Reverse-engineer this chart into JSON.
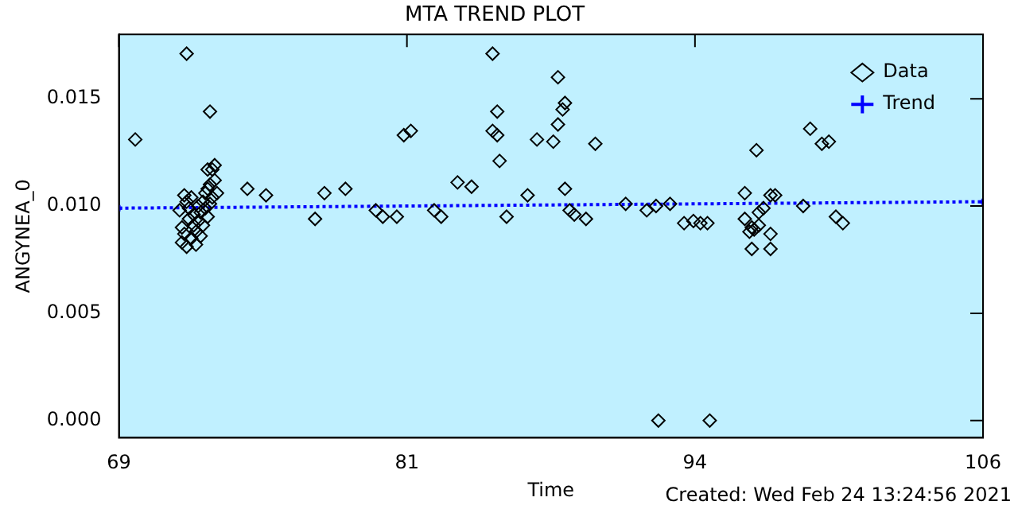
{
  "chart_data": {
    "type": "scatter",
    "title": "MTA TREND PLOT",
    "xlabel": "Time",
    "ylabel": "ANGYNEA_0",
    "annotations": [
      "Created: Wed Feb 24 13:24:56 2021"
    ],
    "xlim": [
      69,
      106
    ],
    "xticks": [
      69,
      {
        "value": 81.333,
        "label": "81"
      },
      {
        "value": 93.667,
        "label": "94"
      },
      106
    ],
    "ylim": [
      -0.0008,
      0.018
    ],
    "yticks": [
      {
        "value": 0,
        "label": "0.000"
      },
      {
        "value": 0.005,
        "label": "0.005"
      },
      {
        "value": 0.01,
        "label": "0.010"
      },
      {
        "value": 0.015,
        "label": "0.015"
      }
    ],
    "grid": false,
    "legend": "top right",
    "series": [
      {
        "name": "Data",
        "marker": "diamond",
        "color": "#000000",
        "x": [
          69.7,
          71.9,
          72.9,
          71.6,
          71.7,
          71.7,
          71.8,
          71.8,
          71.9,
          71.9,
          72.0,
          72.0,
          72.1,
          72.1,
          72.2,
          72.2,
          72.3,
          72.3,
          72.4,
          72.4,
          72.5,
          72.5,
          72.6,
          72.6,
          72.7,
          72.7,
          72.8,
          72.8,
          72.9,
          72.9,
          73.0,
          73.0,
          73.1,
          73.1,
          72.8,
          73.2,
          74.5,
          75.3,
          77.4,
          77.8,
          78.7,
          80.0,
          80.3,
          80.9,
          81.2,
          81.5,
          82.5,
          82.8,
          83.5,
          84.1,
          85.0,
          85.2,
          85.0,
          85.2,
          85.3,
          85.6,
          86.5,
          86.9,
          87.6,
          87.8,
          88.0,
          87.8,
          88.1,
          88.1,
          88.3,
          88.5,
          89.0,
          89.4,
          90.7,
          91.6,
          92.0,
          92.6,
          93.2,
          93.6,
          93.9,
          92.1,
          94.3,
          94.2,
          95.8,
          96.3,
          95.8,
          96.1,
          96.2,
          96.4,
          96.0,
          96.1,
          96.9,
          96.9,
          96.9,
          97.1,
          96.6,
          96.4,
          98.3,
          98.6,
          99.1,
          99.4,
          99.7,
          100.0
        ],
        "values": [
          0.0131,
          0.0171,
          0.0144,
          0.0098,
          0.009,
          0.0083,
          0.0105,
          0.0087,
          0.0102,
          0.0081,
          0.0094,
          0.0099,
          0.0085,
          0.0104,
          0.0091,
          0.0096,
          0.0088,
          0.0082,
          0.01,
          0.0093,
          0.0097,
          0.0086,
          0.0102,
          0.0091,
          0.0099,
          0.0106,
          0.0095,
          0.0108,
          0.011,
          0.0101,
          0.0117,
          0.0104,
          0.0119,
          0.0112,
          0.0117,
          0.0106,
          0.0108,
          0.0105,
          0.0094,
          0.0106,
          0.0108,
          0.0098,
          0.0095,
          0.0095,
          0.0133,
          0.0135,
          0.0098,
          0.0095,
          0.0111,
          0.0109,
          0.0171,
          0.0144,
          0.0135,
          0.0133,
          0.0121,
          0.0095,
          0.0105,
          0.0131,
          0.013,
          0.0138,
          0.0145,
          0.016,
          0.0148,
          0.0108,
          0.0098,
          0.0096,
          0.0094,
          0.0129,
          0.0101,
          0.0098,
          0.01,
          0.0101,
          0.0092,
          0.0093,
          0.0092,
          0.0,
          0.0,
          0.0092,
          0.0106,
          0.0126,
          0.0094,
          0.009,
          0.0089,
          0.0091,
          0.0088,
          0.008,
          0.008,
          0.0087,
          0.0105,
          0.0105,
          0.0099,
          0.0097,
          0.01,
          0.0136,
          0.0129,
          0.013,
          0.0095,
          0.0092
        ]
      },
      {
        "name": "Trend",
        "type": "line",
        "marker": "cross",
        "line_style": "dotted",
        "color": "#0000ff",
        "x": [
          69,
          106
        ],
        "values": [
          0.0099,
          0.0102
        ]
      }
    ]
  }
}
